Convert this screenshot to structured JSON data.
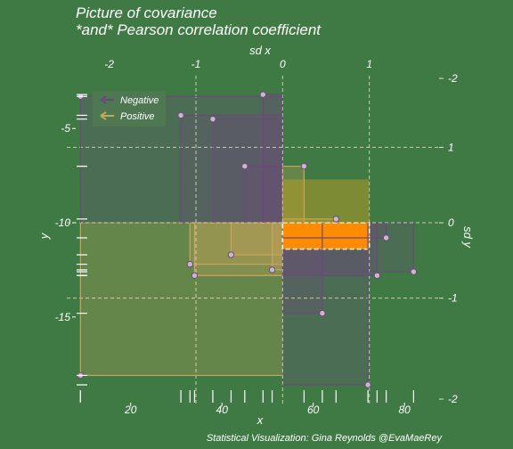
{
  "chart_data": {
    "type": "scatter",
    "title": "Picture of covariance",
    "subtitle": "*and* Pearson correlation coefficient",
    "xlabel": "x",
    "ylabel": "y",
    "top_axis_label": "sd x",
    "right_axis_label": "sd y",
    "caption": "Statistical Visualization: Gina Reynolds @EvaMaeRey",
    "x_ticks": [
      "20",
      "40",
      "60",
      "80"
    ],
    "y_ticks": [
      "-5",
      "-10",
      "-15"
    ],
    "sdx_ticks": [
      "-2",
      "-1",
      "0",
      "1"
    ],
    "sdy_ticks": [
      "-2",
      "1",
      "0",
      "-1",
      "-2"
    ],
    "xlim": [
      6,
      87
    ],
    "ylim": [
      -18.6,
      -2.2
    ],
    "mean_x": 53.3,
    "mean_y": -10,
    "sd_x": 19,
    "sd_y": 4,
    "legend": {
      "placement": "top-left",
      "entries": [
        {
          "label": "Negative",
          "color": "#6b4a7a"
        },
        {
          "label": "Positive",
          "color": "#c9a45a"
        }
      ]
    },
    "points": [
      {
        "x": 9,
        "y": -3.3
      },
      {
        "x": 9,
        "y": -18.1
      },
      {
        "x": 31,
        "y": -4.3
      },
      {
        "x": 38,
        "y": -4.5
      },
      {
        "x": 49,
        "y": -3.2
      },
      {
        "x": 45,
        "y": -7.0
      },
      {
        "x": 58,
        "y": -7.0
      },
      {
        "x": 65,
        "y": -9.8
      },
      {
        "x": 33,
        "y": -12.2
      },
      {
        "x": 42,
        "y": -11.7
      },
      {
        "x": 51,
        "y": -12.5
      },
      {
        "x": 34,
        "y": -12.8
      },
      {
        "x": 76,
        "y": -10.8
      },
      {
        "x": 82,
        "y": -12.6
      },
      {
        "x": 74,
        "y": -12.8
      },
      {
        "x": 62,
        "y": -14.8
      },
      {
        "x": 72,
        "y": -18.6
      }
    ],
    "colors": {
      "background": "#3f7a45",
      "positive": "#c9a45a",
      "negative": "#6b4a7a",
      "highlight": "#ff8c00",
      "text": "#ffffff"
    }
  }
}
